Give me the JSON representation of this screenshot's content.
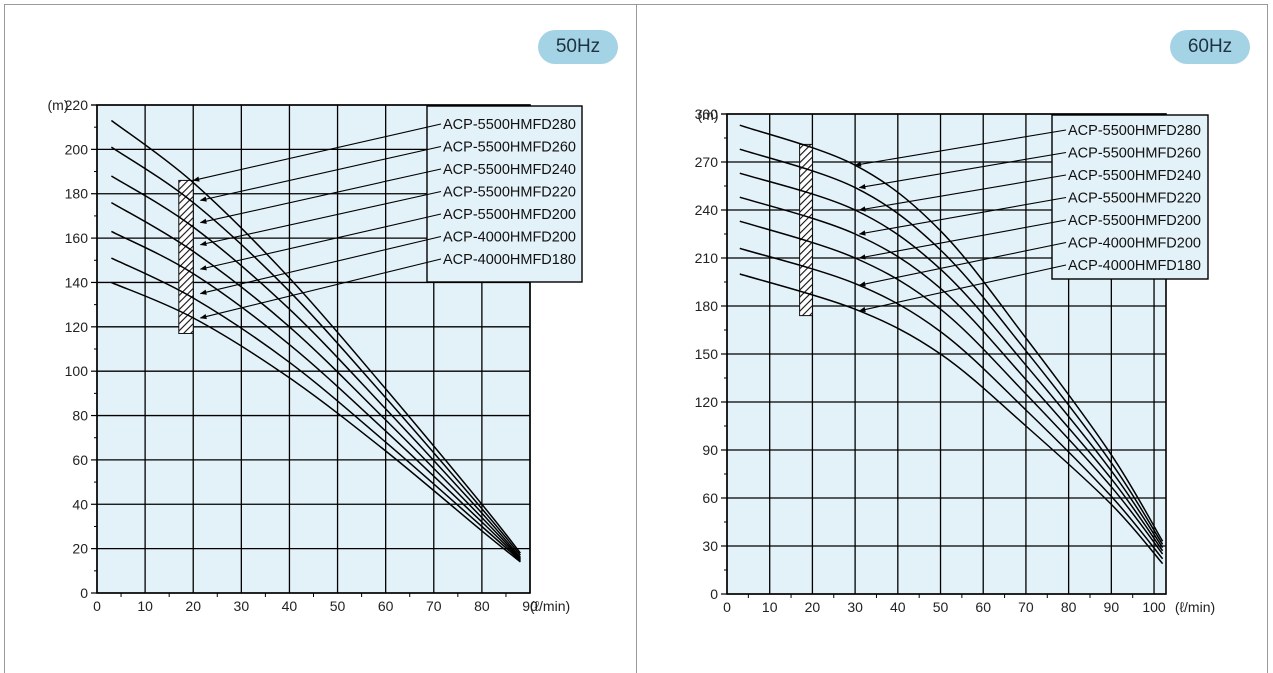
{
  "chart_data": [
    {
      "type": "line",
      "badge": "50Hz",
      "y_unit": "(m)",
      "x_unit": "(ℓ/min)",
      "xlim": [
        0,
        90
      ],
      "ylim": [
        0,
        220
      ],
      "x_ticks": [
        0,
        10,
        20,
        30,
        40,
        50,
        60,
        70,
        80,
        90
      ],
      "y_ticks": [
        0,
        20,
        40,
        60,
        80,
        100,
        120,
        140,
        160,
        180,
        200,
        220
      ],
      "grid": true,
      "legend": "top-right",
      "marked_range": {
        "x": [
          17,
          20
        ],
        "y": [
          117,
          186
        ]
      },
      "series": [
        {
          "name": "ACP-5500HMFD280",
          "values": [
            [
              3,
              213
            ],
            [
              20,
              185
            ],
            [
              40,
              142
            ],
            [
              60,
              92
            ],
            [
              80,
              40
            ],
            [
              88,
              18
            ]
          ]
        },
        {
          "name": "ACP-5500HMFD260",
          "values": [
            [
              3,
              201
            ],
            [
              20,
              176
            ],
            [
              40,
              136
            ],
            [
              60,
              88
            ],
            [
              80,
              38
            ],
            [
              88,
              17
            ]
          ]
        },
        {
          "name": "ACP-5500HMFD240",
          "values": [
            [
              3,
              188
            ],
            [
              20,
              165
            ],
            [
              40,
              128
            ],
            [
              60,
              83
            ],
            [
              80,
              36
            ],
            [
              88,
              16
            ]
          ]
        },
        {
          "name": "ACP-5500HMFD220",
          "values": [
            [
              3,
              176
            ],
            [
              20,
              154
            ],
            [
              40,
              120
            ],
            [
              60,
              78
            ],
            [
              80,
              34
            ],
            [
              88,
              15.5
            ]
          ]
        },
        {
          "name": "ACP-5500HMFD200",
          "values": [
            [
              3,
              163
            ],
            [
              20,
              144
            ],
            [
              40,
              112
            ],
            [
              60,
              73
            ],
            [
              80,
              32
            ],
            [
              88,
              15
            ]
          ]
        },
        {
          "name": "ACP-4000HMFD200",
          "values": [
            [
              3,
              151
            ],
            [
              20,
              133
            ],
            [
              40,
              104
            ],
            [
              60,
              68
            ],
            [
              80,
              30
            ],
            [
              88,
              14.5
            ]
          ]
        },
        {
          "name": "ACP-4000HMFD180",
          "values": [
            [
              3,
              140
            ],
            [
              20,
              124
            ],
            [
              40,
              97
            ],
            [
              60,
              64
            ],
            [
              80,
              28
            ],
            [
              88,
              14
            ]
          ]
        }
      ],
      "arrows": [
        [
          20,
          186
        ],
        [
          21.5,
          177
        ],
        [
          21.5,
          167
        ],
        [
          21.5,
          157
        ],
        [
          21.5,
          146
        ],
        [
          21.5,
          135
        ],
        [
          21.5,
          124
        ]
      ]
    },
    {
      "type": "line",
      "badge": "60Hz",
      "y_unit": "(m)",
      "x_unit": "(ℓ/min)",
      "xlim": [
        0,
        100
      ],
      "ylim": [
        0,
        300
      ],
      "x_ticks": [
        0,
        10,
        20,
        30,
        40,
        50,
        60,
        70,
        80,
        90,
        100
      ],
      "y_ticks": [
        0,
        30,
        60,
        90,
        120,
        150,
        180,
        210,
        240,
        270,
        300
      ],
      "grid": true,
      "legend": "top-right",
      "marked_range": {
        "x": [
          17,
          20
        ],
        "y": [
          174,
          281
        ]
      },
      "series": [
        {
          "name": "ACP-5500HMFD280",
          "values": [
            [
              3,
              293
            ],
            [
              30,
              268
            ],
            [
              50,
              227
            ],
            [
              70,
              160
            ],
            [
              90,
              87
            ],
            [
              102,
              33
            ]
          ]
        },
        {
          "name": "ACP-5500HMFD260",
          "values": [
            [
              3,
              278
            ],
            [
              30,
              254
            ],
            [
              50,
              215
            ],
            [
              70,
              152
            ],
            [
              90,
              82
            ],
            [
              102,
              31
            ]
          ]
        },
        {
          "name": "ACP-5500HMFD240",
          "values": [
            [
              3,
              263
            ],
            [
              30,
              240
            ],
            [
              50,
              203
            ],
            [
              70,
              143
            ],
            [
              90,
              77
            ],
            [
              102,
              29
            ]
          ]
        },
        {
          "name": "ACP-5500HMFD220",
          "values": [
            [
              3,
              248
            ],
            [
              30,
              225
            ],
            [
              50,
              191
            ],
            [
              70,
              134
            ],
            [
              90,
              72
            ],
            [
              102,
              27
            ]
          ]
        },
        {
          "name": "ACP-5500HMFD200",
          "values": [
            [
              3,
              233
            ],
            [
              30,
              210
            ],
            [
              50,
              178
            ],
            [
              70,
              125
            ],
            [
              90,
              67
            ],
            [
              102,
              25
            ]
          ]
        },
        {
          "name": "ACP-4000HMFD200",
          "values": [
            [
              3,
              216
            ],
            [
              30,
              194
            ],
            [
              50,
              164
            ],
            [
              70,
              115
            ],
            [
              90,
              61
            ],
            [
              102,
              22
            ]
          ]
        },
        {
          "name": "ACP-4000HMFD180",
          "values": [
            [
              3,
              200
            ],
            [
              30,
              178
            ],
            [
              50,
              150
            ],
            [
              70,
              105
            ],
            [
              90,
              56
            ],
            [
              102,
              19
            ]
          ]
        }
      ],
      "arrows": [
        [
          30,
          268
        ],
        [
          31,
          254
        ],
        [
          31,
          240
        ],
        [
          31,
          225
        ],
        [
          31,
          210
        ],
        [
          31,
          193
        ],
        [
          31,
          177
        ]
      ]
    }
  ],
  "colors": {
    "plot_background": "#e3f1f8",
    "grid": "#000000",
    "curve": "#000000",
    "badge": "#a5d3e6",
    "frame": "#9a9a9a"
  }
}
